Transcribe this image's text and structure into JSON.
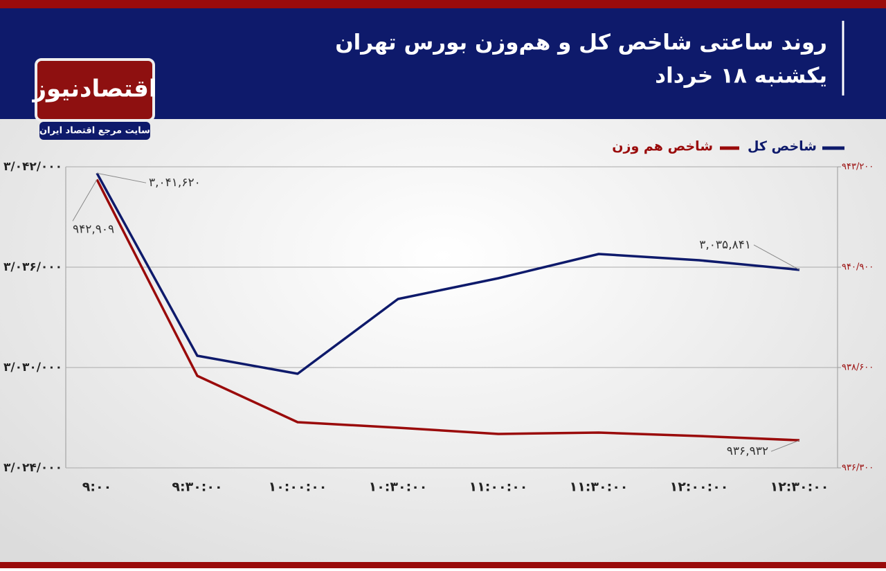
{
  "logo": {
    "name": "اقتصادنیوز",
    "tagline": "سایت مرجع اقتصاد ایران"
  },
  "chart_data": {
    "type": "line",
    "title": "روند ساعتی شاخص کل و هم‌وزن بورس تهران",
    "subtitle": "یکشنبه ۱۸ خرداد",
    "categories": [
      "۹:۰۰",
      "۹:۳۰:۰۰",
      "۱۰:۰۰:۰۰",
      "۱۰:۳۰:۰۰",
      "۱۱:۰۰:۰۰",
      "۱۱:۳۰:۰۰",
      "۱۲:۰۰:۰۰",
      "۱۲:۳۰:۰۰"
    ],
    "series": [
      {
        "name": "شاخص کل",
        "color": "#0e1a6b",
        "values": [
          3041620,
          3030703,
          3029628,
          3034097,
          3035338,
          3036786,
          3036414,
          3035841
        ],
        "value_labels": [
          "۳,۰۴۱,۶۲۰",
          null,
          null,
          null,
          null,
          null,
          null,
          "۳,۰۳۵,۸۴۱"
        ]
      },
      {
        "name": "شاخص هم وزن",
        "color": "#9a0b0b",
        "axis": "y2",
        "values": [
          942909,
          938410,
          937347,
          937220,
          937077,
          937109,
          937030,
          936932
        ],
        "value_labels": [
          "۹۴۲,۹۰۹",
          null,
          null,
          null,
          null,
          null,
          null,
          "۹۳۶,۹۳۲"
        ]
      }
    ],
    "ylim": [
      3024000,
      3042000
    ],
    "yticks": [
      {
        "value": 3024000,
        "label": "۳/۰۲۴/۰۰۰"
      },
      {
        "value": 3030000,
        "label": "۳/۰۳۰/۰۰۰"
      },
      {
        "value": 3036000,
        "label": "۳/۰۳۶/۰۰۰"
      },
      {
        "value": 3042000,
        "label": "۳/۰۴۲/۰۰۰"
      }
    ],
    "y2lim": [
      936300,
      943200
    ],
    "y2ticks": [
      {
        "value": 936300,
        "label": "۹۳۶/۳۰۰"
      },
      {
        "value": 938600,
        "label": "۹۳۸/۶۰۰"
      },
      {
        "value": 940900,
        "label": "۹۴۰/۹۰۰"
      },
      {
        "value": 943200,
        "label": "۹۴۳/۲۰۰"
      }
    ],
    "grid": true
  }
}
